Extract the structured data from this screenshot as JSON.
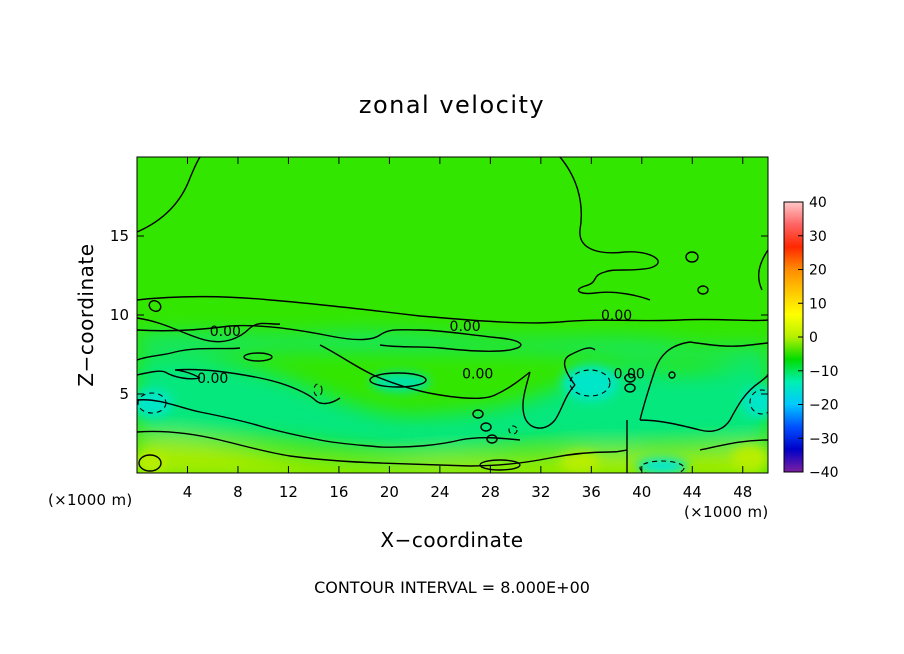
{
  "chart_data": {
    "type": "heatmap",
    "title": "zonal velocity",
    "xlabel": "X−coordinate",
    "ylabel": "Z−coordinate",
    "x_unit": "(×1000 m)",
    "xlim": [
      0,
      50
    ],
    "ylim": [
      0,
      20
    ],
    "x_ticks": [
      4,
      8,
      12,
      16,
      20,
      24,
      28,
      32,
      36,
      40,
      44,
      48
    ],
    "y_ticks": [
      5,
      10,
      15
    ],
    "colorbar": {
      "min": -40,
      "max": 40,
      "ticks": [
        40,
        30,
        20,
        10,
        0,
        -10,
        -20,
        -30,
        -40
      ],
      "colors": [
        "#7c1fa0",
        "#0000c8",
        "#0050ff",
        "#00c8ff",
        "#00f0b4",
        "#00dc00",
        "#b4f000",
        "#ffff00",
        "#ffc800",
        "#ff8c00",
        "#ff2800",
        "#ff6464",
        "#ffc8c8"
      ]
    },
    "contour_interval": 8.0,
    "contour_interval_text": "CONTOUR INTERVAL = 8.000E+00",
    "contour_labels": [
      {
        "text": "0.00",
        "x": 7,
        "y": 9.0
      },
      {
        "text": "0.00",
        "x": 26,
        "y": 9.3
      },
      {
        "text": "0.00",
        "x": 38,
        "y": 10.0
      },
      {
        "text": "0.00",
        "x": 6,
        "y": 6.0
      },
      {
        "text": "0.00",
        "x": 27,
        "y": 6.3
      },
      {
        "text": "0.00",
        "x": 39,
        "y": 6.3
      }
    ],
    "grid": false,
    "colors": {
      "background": "#33e600",
      "positive_band": "#a8ea00",
      "negative_band": "#00e8a0",
      "strong_negative": "#00e6d0",
      "contour": "#000000"
    }
  }
}
